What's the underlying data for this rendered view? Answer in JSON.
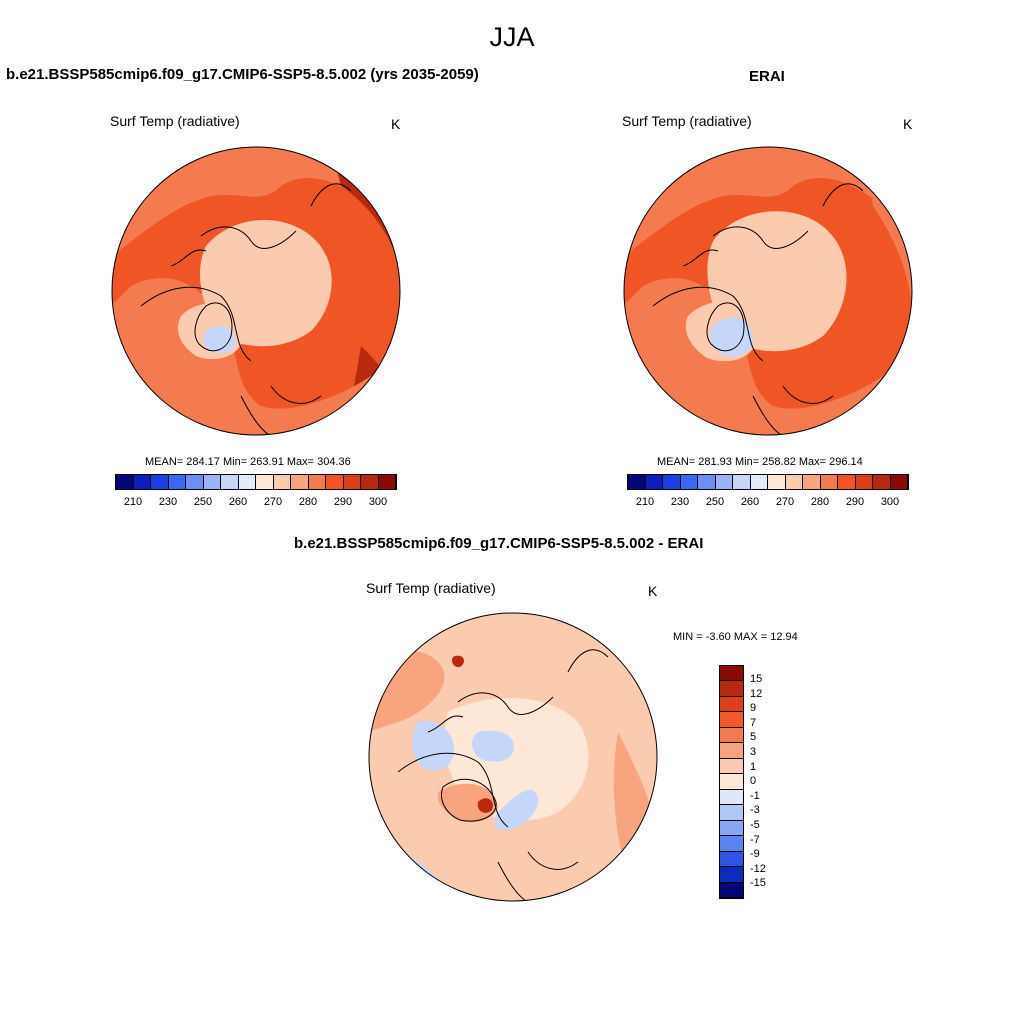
{
  "figure": {
    "title": "JJA"
  },
  "panels": {
    "model": {
      "title": "b.e21.BSSP585cmip6.f09_g17.CMIP6-SSP5-8.5.002 (yrs 2035-2059)",
      "variable": "Surf Temp (radiative)",
      "units": "K",
      "stats": "MEAN= 284.17  Min= 263.91  Max= 304.36"
    },
    "obs": {
      "title": "ERAI",
      "variable": "Surf Temp (radiative)",
      "units": "K",
      "stats": "MEAN= 281.93  Min= 258.82  Max= 296.14"
    },
    "diff": {
      "title": "b.e21.BSSP585cmip6.f09_g17.CMIP6-SSP5-8.5.002 - ERAI",
      "variable": "Surf Temp (radiative)",
      "units": "K",
      "stats": "MIN =  -3.60 MAX =  12.94"
    }
  },
  "colorbars": {
    "abs": {
      "ticks": [
        "210",
        "230",
        "250",
        "260",
        "270",
        "280",
        "290",
        "300"
      ],
      "colors": [
        "#05057a",
        "#0a20b8",
        "#1a40e0",
        "#3a68f0",
        "#6a90f4",
        "#9ab4f6",
        "#c6d6f8",
        "#e4ecfa",
        "#fde8d8",
        "#fbcbb0",
        "#f8a47e",
        "#f47a50",
        "#ef5525",
        "#d8401a",
        "#b82a10",
        "#8a0a05"
      ]
    },
    "diff": {
      "ticks": [
        "15",
        "12",
        "9",
        "7",
        "5",
        "3",
        "1",
        "0",
        "-1",
        "-3",
        "-5",
        "-7",
        "-9",
        "-12",
        "-15"
      ],
      "colors": [
        "#8a0a05",
        "#b82a10",
        "#e0401a",
        "#f45a28",
        "#f47a50",
        "#f8a47e",
        "#fbcbb0",
        "#fde8d8",
        "#dde8fa",
        "#b0c8f6",
        "#86a8f4",
        "#5a84f0",
        "#2c56e0",
        "#0c2cc0",
        "#05057a"
      ]
    }
  },
  "map_colors": {
    "ocean_warm": "#ef5525",
    "land_warm": "#f47a50",
    "arctic": "#fbcbb0",
    "ice_cold": "#c6d6f8",
    "hot": "#b82a10",
    "diff_base": "#fbcbb0",
    "diff_neutral": "#fde8d8",
    "diff_cool": "#c6d6f8",
    "diff_warm": "#f8a47e"
  }
}
